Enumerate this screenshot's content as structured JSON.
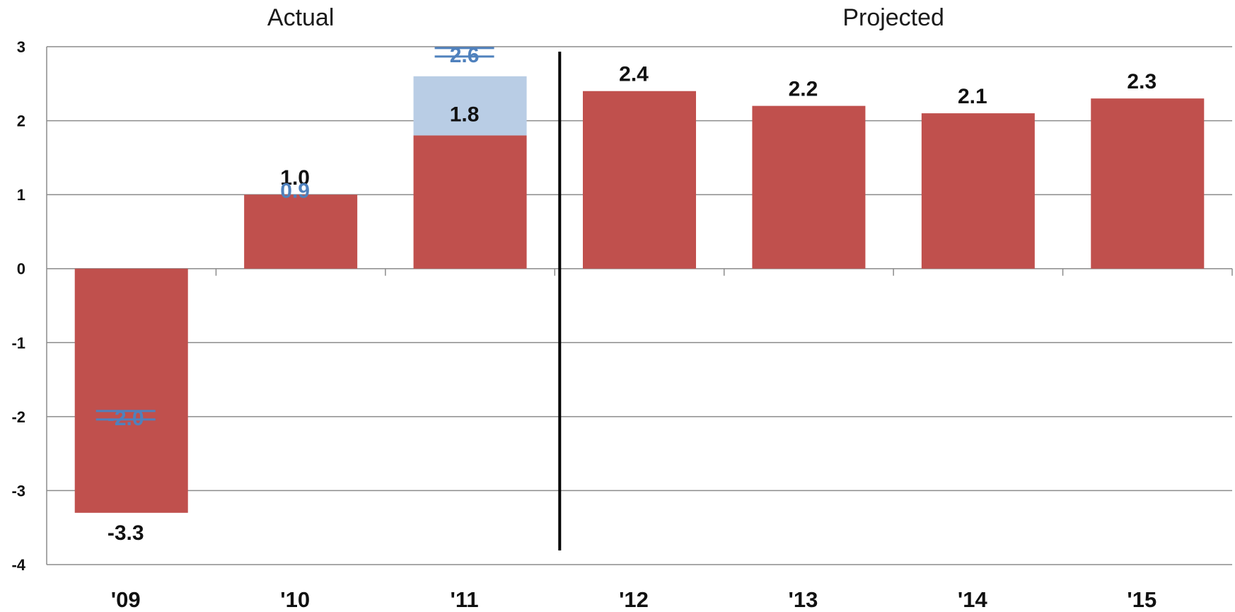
{
  "chart_data": {
    "type": "bar",
    "title": "",
    "xlabel": "",
    "ylabel": "",
    "ylim": [
      -4,
      3
    ],
    "yticks": [
      3,
      2,
      1,
      0,
      -1,
      -2,
      -3,
      -4
    ],
    "grid": true,
    "sections": [
      {
        "label": "Actual",
        "categories": [
          "'09",
          "'10",
          "'11"
        ]
      },
      {
        "label": "Projected",
        "categories": [
          "'12",
          "'13",
          "'14",
          "'15"
        ]
      }
    ],
    "categories": [
      "'09",
      "'10",
      "'11",
      "'12",
      "'13",
      "'14",
      "'15"
    ],
    "series": [
      {
        "values": [
          -3.3,
          1.0,
          1.8,
          2.4,
          2.2,
          2.1,
          2.3
        ],
        "labels": [
          "-3.3",
          "1.0",
          "1.8",
          "2.4",
          "2.2",
          "2.1",
          "2.3"
        ],
        "color": "#c0504d"
      },
      {
        "values": [
          -2.0,
          0.9,
          2.6,
          null,
          null,
          null,
          null
        ],
        "labels": [
          "-2.0",
          "0.9",
          "2.6",
          "",
          "",
          "",
          ""
        ],
        "color": "#4f81bd",
        "fill_color": "#b9cde5"
      }
    ],
    "divider_between": [
      "'11",
      "'12"
    ]
  }
}
